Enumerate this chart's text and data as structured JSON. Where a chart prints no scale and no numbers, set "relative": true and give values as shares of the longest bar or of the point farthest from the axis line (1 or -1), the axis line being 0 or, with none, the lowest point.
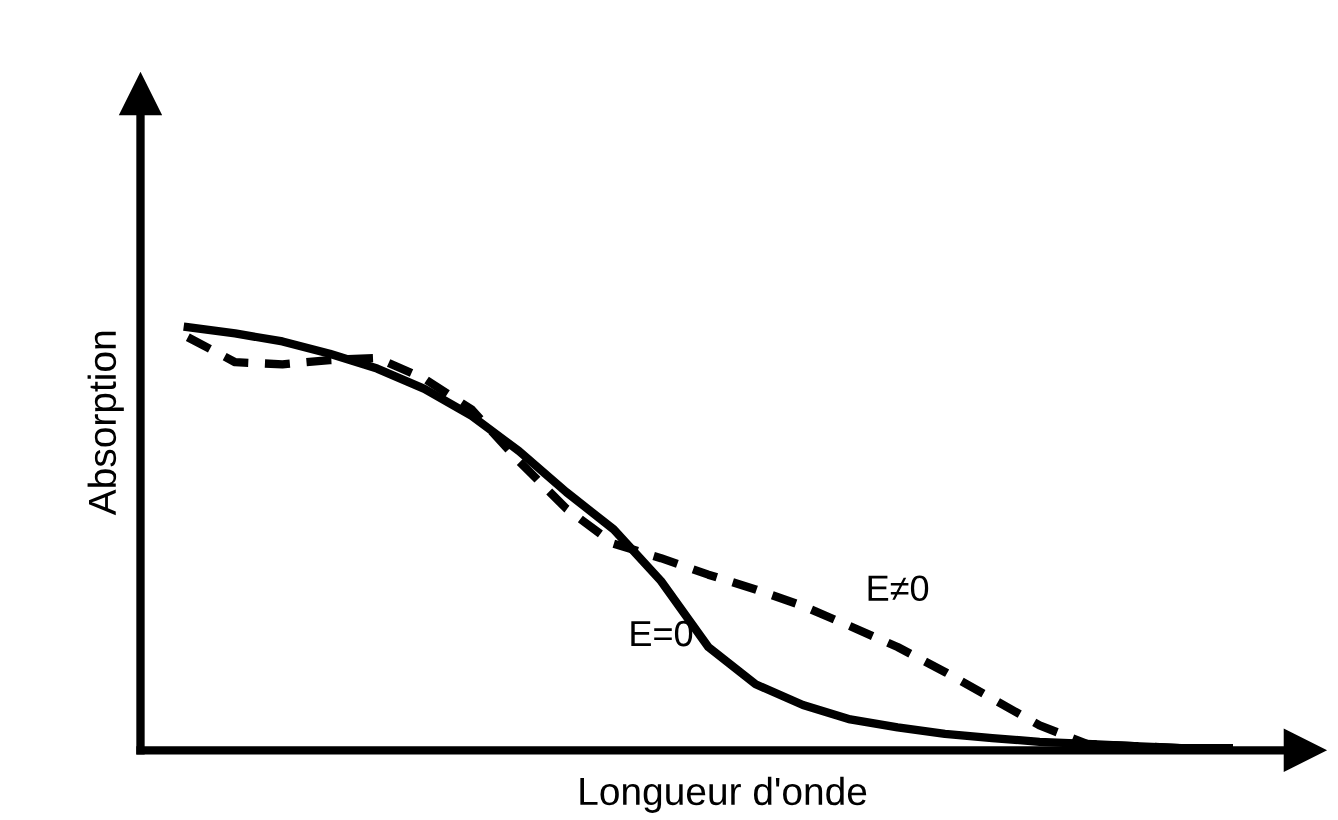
{
  "chart_data": {
    "type": "line",
    "relative": true,
    "xlabel": "Longueur d'onde",
    "ylabel": "Absorption",
    "categories": [
      null,
      null,
      null,
      null,
      null,
      null,
      null,
      null,
      null,
      null,
      null,
      null,
      null,
      null,
      null,
      null,
      null,
      null,
      null,
      null,
      null,
      null,
      null
    ],
    "series": [
      {
        "name": "E=0",
        "color": "#000000",
        "line_style": "solid",
        "values": [
          1,
          0.985,
          0.966,
          0.937,
          0.902,
          0.854,
          0.79,
          0.707,
          0.61,
          0.522,
          0.4,
          0.244,
          0.156,
          0.107,
          0.073,
          0.054,
          0.039,
          0.029,
          0.02,
          0.015,
          0.01,
          0.005,
          0.005
        ]
      },
      {
        "name": "E≠0",
        "color": "#000000",
        "line_style": "dashed",
        "values": [
          0.976,
          0.917,
          0.912,
          0.922,
          0.927,
          0.878,
          0.805,
          0.683,
          0.571,
          0.488,
          0.454,
          0.415,
          0.38,
          0.341,
          0.293,
          0.244,
          0.185,
          0.122,
          0.059,
          0.015,
          0.01,
          0.005,
          0.005
        ]
      }
    ],
    "legend": false,
    "grid": false,
    "marker": "none"
  }
}
